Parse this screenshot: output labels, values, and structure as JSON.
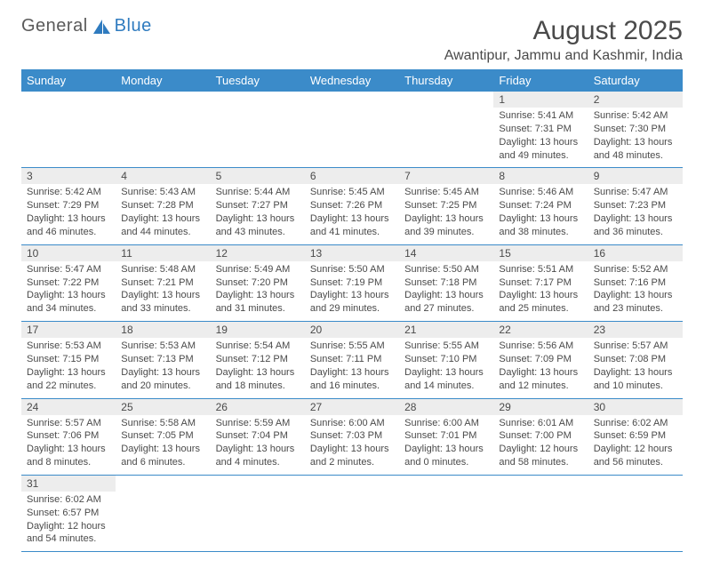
{
  "logo": {
    "part1": "General",
    "part2": "Blue",
    "sail_color": "#2f7bbf",
    "text_color": "#5a5a5a"
  },
  "title": "August 2025",
  "subtitle": "Awantipur, Jammu and Kashmir, India",
  "colors": {
    "header_bg": "#3b8bc9",
    "header_text": "#ffffff",
    "daynum_bg": "#ededed",
    "rule": "#3b8bc9",
    "body_text": "#4a4a4a"
  },
  "font_sizes": {
    "title": 30,
    "subtitle": 16,
    "weekday": 13,
    "daynum": 12,
    "cell": 11
  },
  "weekdays": [
    "Sunday",
    "Monday",
    "Tuesday",
    "Wednesday",
    "Thursday",
    "Friday",
    "Saturday"
  ],
  "weeks": [
    [
      null,
      null,
      null,
      null,
      null,
      {
        "n": "1",
        "sr": "Sunrise: 5:41 AM",
        "ss": "Sunset: 7:31 PM",
        "dl": "Daylight: 13 hours and 49 minutes."
      },
      {
        "n": "2",
        "sr": "Sunrise: 5:42 AM",
        "ss": "Sunset: 7:30 PM",
        "dl": "Daylight: 13 hours and 48 minutes."
      }
    ],
    [
      {
        "n": "3",
        "sr": "Sunrise: 5:42 AM",
        "ss": "Sunset: 7:29 PM",
        "dl": "Daylight: 13 hours and 46 minutes."
      },
      {
        "n": "4",
        "sr": "Sunrise: 5:43 AM",
        "ss": "Sunset: 7:28 PM",
        "dl": "Daylight: 13 hours and 44 minutes."
      },
      {
        "n": "5",
        "sr": "Sunrise: 5:44 AM",
        "ss": "Sunset: 7:27 PM",
        "dl": "Daylight: 13 hours and 43 minutes."
      },
      {
        "n": "6",
        "sr": "Sunrise: 5:45 AM",
        "ss": "Sunset: 7:26 PM",
        "dl": "Daylight: 13 hours and 41 minutes."
      },
      {
        "n": "7",
        "sr": "Sunrise: 5:45 AM",
        "ss": "Sunset: 7:25 PM",
        "dl": "Daylight: 13 hours and 39 minutes."
      },
      {
        "n": "8",
        "sr": "Sunrise: 5:46 AM",
        "ss": "Sunset: 7:24 PM",
        "dl": "Daylight: 13 hours and 38 minutes."
      },
      {
        "n": "9",
        "sr": "Sunrise: 5:47 AM",
        "ss": "Sunset: 7:23 PM",
        "dl": "Daylight: 13 hours and 36 minutes."
      }
    ],
    [
      {
        "n": "10",
        "sr": "Sunrise: 5:47 AM",
        "ss": "Sunset: 7:22 PM",
        "dl": "Daylight: 13 hours and 34 minutes."
      },
      {
        "n": "11",
        "sr": "Sunrise: 5:48 AM",
        "ss": "Sunset: 7:21 PM",
        "dl": "Daylight: 13 hours and 33 minutes."
      },
      {
        "n": "12",
        "sr": "Sunrise: 5:49 AM",
        "ss": "Sunset: 7:20 PM",
        "dl": "Daylight: 13 hours and 31 minutes."
      },
      {
        "n": "13",
        "sr": "Sunrise: 5:50 AM",
        "ss": "Sunset: 7:19 PM",
        "dl": "Daylight: 13 hours and 29 minutes."
      },
      {
        "n": "14",
        "sr": "Sunrise: 5:50 AM",
        "ss": "Sunset: 7:18 PM",
        "dl": "Daylight: 13 hours and 27 minutes."
      },
      {
        "n": "15",
        "sr": "Sunrise: 5:51 AM",
        "ss": "Sunset: 7:17 PM",
        "dl": "Daylight: 13 hours and 25 minutes."
      },
      {
        "n": "16",
        "sr": "Sunrise: 5:52 AM",
        "ss": "Sunset: 7:16 PM",
        "dl": "Daylight: 13 hours and 23 minutes."
      }
    ],
    [
      {
        "n": "17",
        "sr": "Sunrise: 5:53 AM",
        "ss": "Sunset: 7:15 PM",
        "dl": "Daylight: 13 hours and 22 minutes."
      },
      {
        "n": "18",
        "sr": "Sunrise: 5:53 AM",
        "ss": "Sunset: 7:13 PM",
        "dl": "Daylight: 13 hours and 20 minutes."
      },
      {
        "n": "19",
        "sr": "Sunrise: 5:54 AM",
        "ss": "Sunset: 7:12 PM",
        "dl": "Daylight: 13 hours and 18 minutes."
      },
      {
        "n": "20",
        "sr": "Sunrise: 5:55 AM",
        "ss": "Sunset: 7:11 PM",
        "dl": "Daylight: 13 hours and 16 minutes."
      },
      {
        "n": "21",
        "sr": "Sunrise: 5:55 AM",
        "ss": "Sunset: 7:10 PM",
        "dl": "Daylight: 13 hours and 14 minutes."
      },
      {
        "n": "22",
        "sr": "Sunrise: 5:56 AM",
        "ss": "Sunset: 7:09 PM",
        "dl": "Daylight: 13 hours and 12 minutes."
      },
      {
        "n": "23",
        "sr": "Sunrise: 5:57 AM",
        "ss": "Sunset: 7:08 PM",
        "dl": "Daylight: 13 hours and 10 minutes."
      }
    ],
    [
      {
        "n": "24",
        "sr": "Sunrise: 5:57 AM",
        "ss": "Sunset: 7:06 PM",
        "dl": "Daylight: 13 hours and 8 minutes."
      },
      {
        "n": "25",
        "sr": "Sunrise: 5:58 AM",
        "ss": "Sunset: 7:05 PM",
        "dl": "Daylight: 13 hours and 6 minutes."
      },
      {
        "n": "26",
        "sr": "Sunrise: 5:59 AM",
        "ss": "Sunset: 7:04 PM",
        "dl": "Daylight: 13 hours and 4 minutes."
      },
      {
        "n": "27",
        "sr": "Sunrise: 6:00 AM",
        "ss": "Sunset: 7:03 PM",
        "dl": "Daylight: 13 hours and 2 minutes."
      },
      {
        "n": "28",
        "sr": "Sunrise: 6:00 AM",
        "ss": "Sunset: 7:01 PM",
        "dl": "Daylight: 13 hours and 0 minutes."
      },
      {
        "n": "29",
        "sr": "Sunrise: 6:01 AM",
        "ss": "Sunset: 7:00 PM",
        "dl": "Daylight: 12 hours and 58 minutes."
      },
      {
        "n": "30",
        "sr": "Sunrise: 6:02 AM",
        "ss": "Sunset: 6:59 PM",
        "dl": "Daylight: 12 hours and 56 minutes."
      }
    ],
    [
      {
        "n": "31",
        "sr": "Sunrise: 6:02 AM",
        "ss": "Sunset: 6:57 PM",
        "dl": "Daylight: 12 hours and 54 minutes."
      },
      null,
      null,
      null,
      null,
      null,
      null
    ]
  ]
}
